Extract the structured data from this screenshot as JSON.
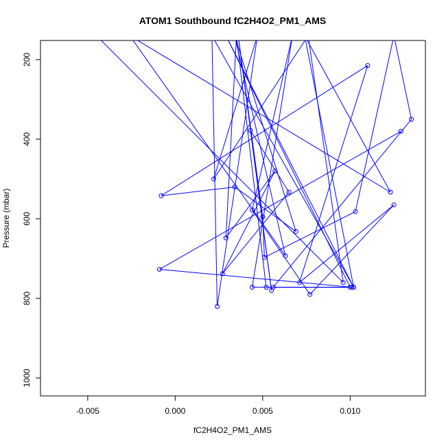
{
  "chart_data": {
    "type": "line",
    "title": "ATOM1 Southbound fC2H4O2_PM1_AMS",
    "xlabel": "fC2H4O2_PM1_AMS",
    "ylabel": "Pressure (mbar)",
    "xlim": [
      -0.0077,
      0.0143
    ],
    "ylim": [
      1045,
      152
    ],
    "y_reversed": true,
    "grid": false,
    "xticks": [
      -0.005,
      0.0,
      0.005,
      0.01
    ],
    "xtick_labels": [
      "-0.005",
      "0.000",
      "0.005",
      "0.010"
    ],
    "yticks": [
      200,
      400,
      600,
      800,
      1000
    ],
    "ytick_labels": [
      "200",
      "400",
      "600",
      "800",
      "1000"
    ],
    "series": [
      {
        "color": "#0000ff",
        "marker": "open-circle",
        "points": [
          {
            "x": -0.0045,
            "y": 140,
            "marker": false
          },
          {
            "x": 0.0096,
            "y": 760
          },
          {
            "x": 0.0076,
            "y": 140,
            "marker": false
          },
          {
            "x": 0.0022,
            "y": 500
          },
          {
            "x": 0.0047,
            "y": 140,
            "marker": false
          },
          {
            "x": 0.0024,
            "y": 820
          },
          {
            "x": 0.0021,
            "y": 140,
            "marker": false
          },
          {
            "x": 0.0102,
            "y": 772
          },
          {
            "x": 0.0074,
            "y": 140,
            "marker": false
          },
          {
            "x": 0.0123,
            "y": 533
          },
          {
            "x": -0.0026,
            "y": 140,
            "marker": false
          },
          {
            "x": 0.0063,
            "y": 693
          },
          {
            "x": 0.0034,
            "y": 140,
            "marker": false
          },
          {
            "x": 0.0069,
            "y": 632
          },
          {
            "x": 0.0034,
            "y": 520
          },
          {
            "x": -0.0008,
            "y": 542
          },
          {
            "x": 0.011,
            "y": 215
          },
          {
            "x": 0.0071,
            "y": 760
          },
          {
            "x": 0.0125,
            "y": 565
          },
          {
            "x": 0.0077,
            "y": 790
          },
          {
            "x": 0.0044,
            "y": 578
          },
          {
            "x": 0.0067,
            "y": 140,
            "marker": false
          },
          {
            "x": 0.0044,
            "y": 772
          },
          {
            "x": 0.0102,
            "y": 772
          },
          {
            "x": 0.0029,
            "y": 140,
            "marker": false
          },
          {
            "x": 0.01,
            "y": 772
          },
          {
            "x": 0.0056,
            "y": 772
          },
          {
            "x": 0.0135,
            "y": 350
          },
          {
            "x": 0.0125,
            "y": 140,
            "marker": false
          },
          {
            "x": 0.0103,
            "y": 582
          },
          {
            "x": 0.0051,
            "y": 697
          },
          {
            "x": 0.005,
            "y": 595
          },
          {
            "x": 0.0036,
            "y": 140,
            "marker": false
          },
          {
            "x": 0.0055,
            "y": 780
          },
          {
            "x": 0.0043,
            "y": 378
          },
          {
            "x": 0.0065,
            "y": 533
          },
          {
            "x": 0.0027,
            "y": 738
          },
          {
            "x": 0.0057,
            "y": 480
          },
          {
            "x": 0.0029,
            "y": 648
          },
          {
            "x": 0.0035,
            "y": 140,
            "marker": false
          },
          {
            "x": 0.0052,
            "y": 772
          },
          {
            "x": 0.0101,
            "y": 772
          },
          {
            "x": -0.0009,
            "y": 727
          },
          {
            "x": 0.0129,
            "y": 380
          }
        ]
      }
    ]
  }
}
